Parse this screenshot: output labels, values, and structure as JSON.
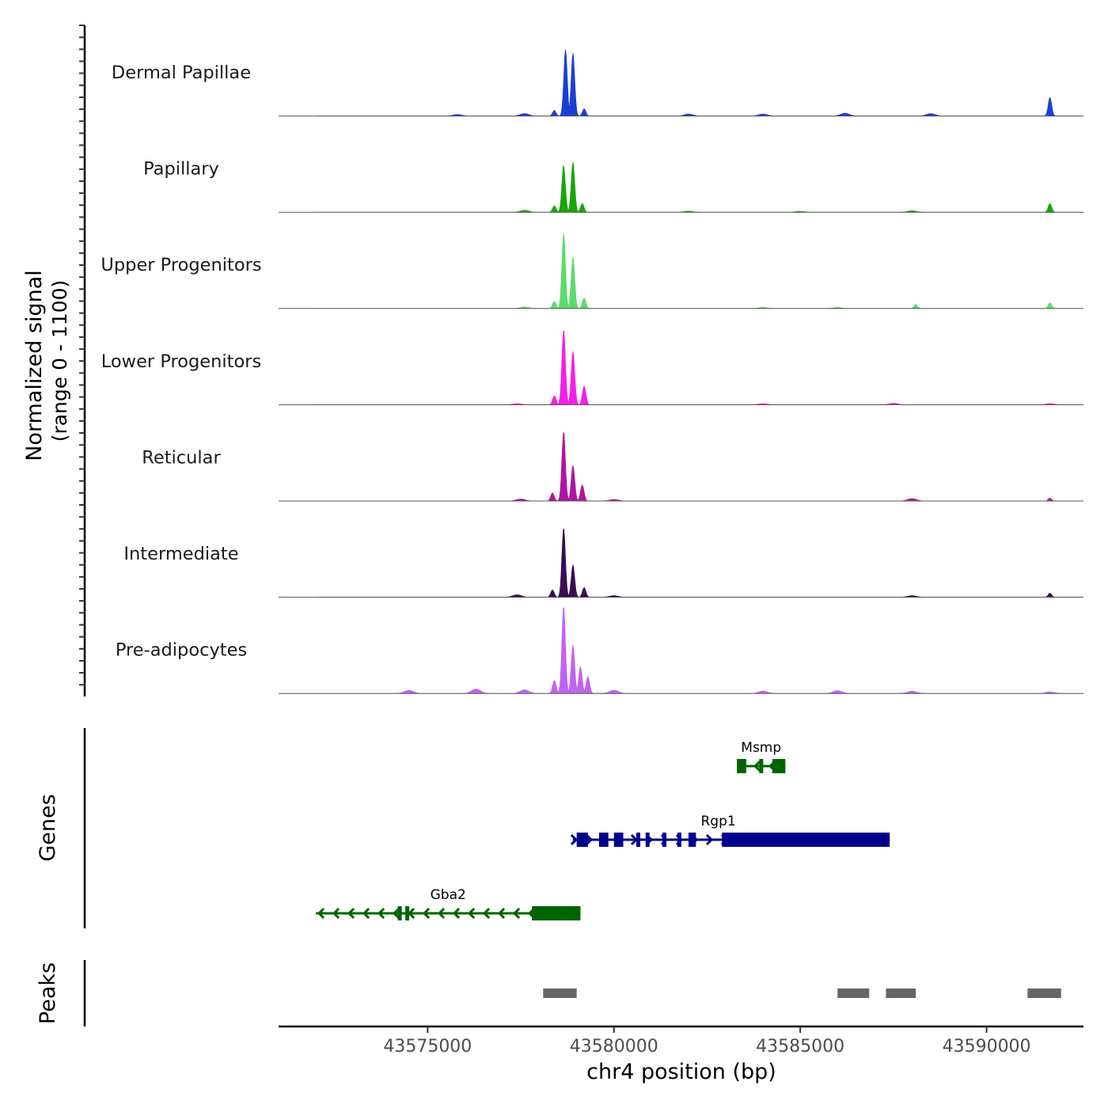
{
  "chart_data": {
    "type": "area",
    "title": "",
    "ylabel_line1": "Normalized signal",
    "ylabel_line2": "(range 0 - 1100)",
    "xlabel": "chr4 position (bp)",
    "xlim": [
      43571000,
      43592600
    ],
    "ylim": [
      0,
      1100
    ],
    "x_ticks": [
      43575000,
      43580000,
      43585000,
      43590000
    ],
    "x_tick_labels": [
      "43575000",
      "43580000",
      "43585000",
      "43590000"
    ],
    "tracks": [
      {
        "name": "Dermal Papillae",
        "color": "#1c3fd4",
        "peaks": [
          [
            43578700,
            820
          ],
          [
            43578900,
            780
          ],
          [
            43579200,
            90
          ],
          [
            43591700,
            230
          ],
          [
            43578400,
            70
          ]
        ],
        "noise": [
          [
            43575800,
            20
          ],
          [
            43577600,
            30
          ],
          [
            43582000,
            25
          ],
          [
            43584000,
            25
          ],
          [
            43586200,
            35
          ],
          [
            43588500,
            30
          ]
        ]
      },
      {
        "name": "Papillary",
        "color": "#19a609",
        "peaks": [
          [
            43578650,
            580
          ],
          [
            43578900,
            620
          ],
          [
            43579150,
            110
          ],
          [
            43578400,
            80
          ],
          [
            43591700,
            110
          ]
        ],
        "noise": [
          [
            43577600,
            25
          ],
          [
            43582000,
            15
          ],
          [
            43585000,
            12
          ],
          [
            43588000,
            20
          ]
        ]
      },
      {
        "name": "Upper Progenitors",
        "color": "#5bdb6d",
        "peaks": [
          [
            43578650,
            930
          ],
          [
            43578900,
            640
          ],
          [
            43579200,
            130
          ],
          [
            43578400,
            90
          ],
          [
            43591700,
            70
          ],
          [
            43588100,
            50
          ]
        ],
        "noise": [
          [
            43577600,
            20
          ],
          [
            43584000,
            15
          ],
          [
            43586000,
            15
          ]
        ]
      },
      {
        "name": "Lower Progenitors",
        "color": "#f51ee8",
        "peaks": [
          [
            43578650,
            930
          ],
          [
            43578900,
            660
          ],
          [
            43579200,
            230
          ],
          [
            43578400,
            110
          ]
        ],
        "noise": [
          [
            43577400,
            15
          ],
          [
            43584000,
            15
          ],
          [
            43587500,
            20
          ],
          [
            43591700,
            15
          ]
        ]
      },
      {
        "name": "Reticular",
        "color": "#b0149e",
        "peaks": [
          [
            43578650,
            860
          ],
          [
            43578900,
            440
          ],
          [
            43579150,
            200
          ],
          [
            43578350,
            100
          ],
          [
            43591700,
            35
          ]
        ],
        "noise": [
          [
            43577500,
            25
          ],
          [
            43580000,
            20
          ],
          [
            43588000,
            30
          ]
        ]
      },
      {
        "name": "Intermediate",
        "color": "#3a0b52",
        "peaks": [
          [
            43578650,
            860
          ],
          [
            43578900,
            400
          ],
          [
            43579200,
            120
          ],
          [
            43578350,
            90
          ],
          [
            43591700,
            50
          ]
        ],
        "noise": [
          [
            43577400,
            30
          ],
          [
            43580000,
            20
          ],
          [
            43588000,
            20
          ]
        ]
      },
      {
        "name": "Pre-adipocytes",
        "color": "#c163f2",
        "peaks": [
          [
            43578650,
            1080
          ],
          [
            43578900,
            600
          ],
          [
            43579100,
            330
          ],
          [
            43579300,
            210
          ],
          [
            43578400,
            160
          ]
        ],
        "noise": [
          [
            43574500,
            40
          ],
          [
            43576300,
            55
          ],
          [
            43577600,
            45
          ],
          [
            43580000,
            40
          ],
          [
            43584000,
            30
          ],
          [
            43586000,
            35
          ],
          [
            43588000,
            30
          ],
          [
            43591700,
            20
          ]
        ]
      }
    ],
    "genes_label": "Genes",
    "genes": [
      {
        "name": "Msmp",
        "strand": "-",
        "color": "#006400",
        "start": 43583300,
        "end": 43584600,
        "exons": [
          [
            43583300,
            43583550
          ],
          [
            43583900,
            43583980
          ],
          [
            43584250,
            43584600
          ]
        ]
      },
      {
        "name": "Rgp1",
        "strand": "+",
        "color": "#00008b",
        "start": 43578900,
        "end": 43587400,
        "exons": [
          [
            43579000,
            43579300
          ],
          [
            43579600,
            43579850
          ],
          [
            43580000,
            43580250
          ],
          [
            43580600,
            43580700
          ],
          [
            43580850,
            43580950
          ],
          [
            43581300,
            43581400
          ],
          [
            43581700,
            43581800
          ],
          [
            43582000,
            43582200
          ],
          [
            43582900,
            43587400
          ]
        ]
      },
      {
        "name": "Gba2",
        "strand": "-",
        "color": "#006400",
        "start": 43572000,
        "end": 43579100,
        "exons": [
          [
            43574200,
            43574300
          ],
          [
            43574400,
            43574500
          ],
          [
            43577800,
            43578700
          ],
          [
            43578700,
            43579100
          ]
        ]
      }
    ],
    "peaks_label": "Peaks",
    "peak_regions": [
      [
        43578100,
        43579000
      ],
      [
        43586000,
        43586850
      ],
      [
        43587300,
        43588100
      ],
      [
        43591100,
        43592000
      ]
    ]
  }
}
